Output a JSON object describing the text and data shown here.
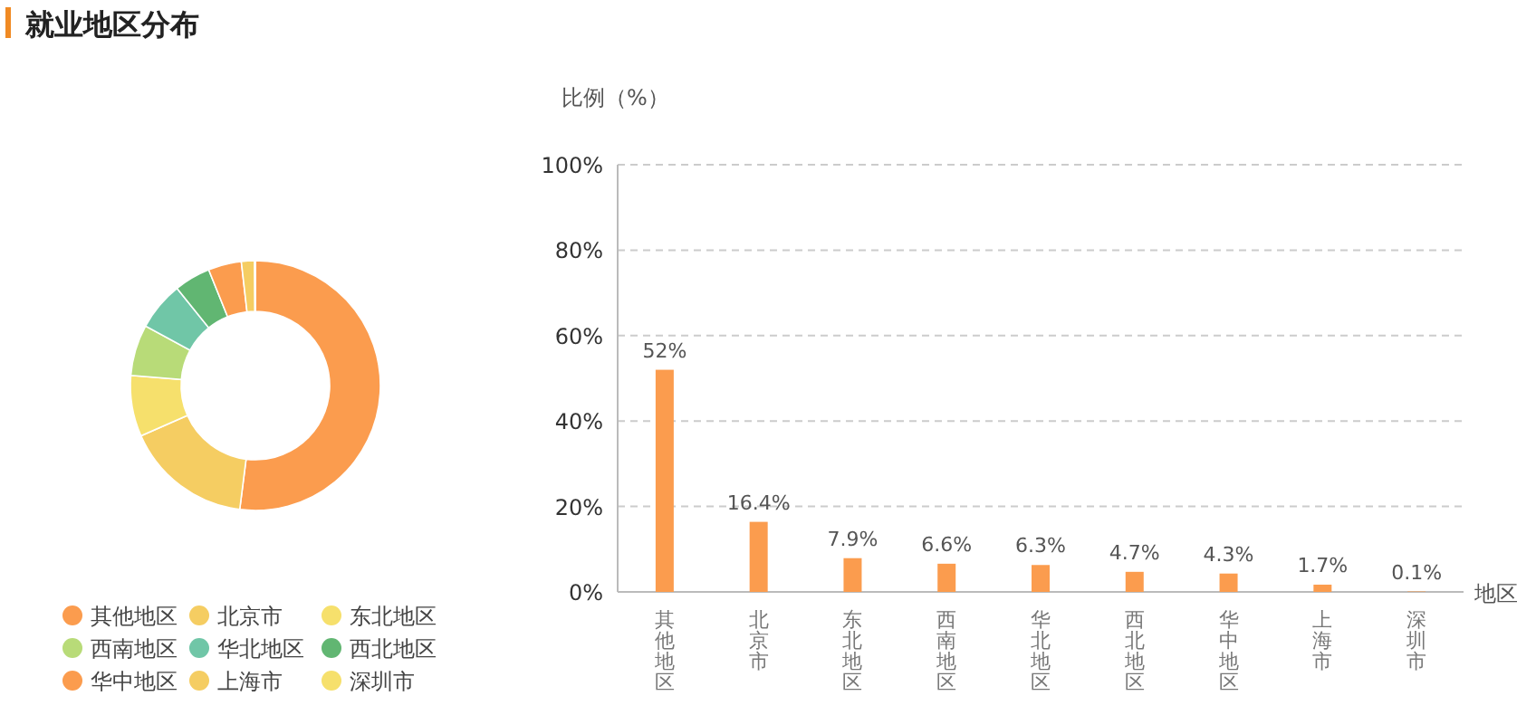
{
  "chart_data": [
    {
      "type": "donut",
      "title": "就业地区分布",
      "categories": [
        "其他地区",
        "北京市",
        "东北地区",
        "西南地区",
        "华北地区",
        "西北地区",
        "华中地区",
        "上海市",
        "深圳市"
      ],
      "values": [
        52,
        16.4,
        7.9,
        6.6,
        6.3,
        4.7,
        4.3,
        1.7,
        0.1
      ],
      "colors": [
        "#fb9c4e",
        "#f5cd62",
        "#f6e06c",
        "#b8db78",
        "#70c6a7",
        "#61b672",
        "#fb9c4e",
        "#f5cd62",
        "#f6e06c"
      ],
      "legend": "bottom"
    },
    {
      "type": "bar",
      "ylabel": "比例（%）",
      "xlabel": "地区",
      "categories": [
        "其他地区",
        "北京市",
        "东北地区",
        "西南地区",
        "华北地区",
        "西北地区",
        "华中地区",
        "上海市",
        "深圳市"
      ],
      "values": [
        52,
        16.4,
        7.9,
        6.6,
        6.3,
        4.7,
        4.3,
        1.7,
        0.1
      ],
      "value_labels": [
        "52%",
        "16.4%",
        "7.9%",
        "6.6%",
        "6.3%",
        "4.7%",
        "4.3%",
        "1.7%",
        "0.1%"
      ],
      "color": "#fb9c4e",
      "ylim": [
        0,
        100
      ],
      "yticks": [
        {
          "value": 0,
          "label": "0%"
        },
        {
          "value": 20,
          "label": "20%"
        },
        {
          "value": 40,
          "label": "40%"
        },
        {
          "value": 60,
          "label": "60%"
        },
        {
          "value": 80,
          "label": "80%"
        },
        {
          "value": 100,
          "label": "100%"
        }
      ],
      "grid": "y"
    }
  ]
}
